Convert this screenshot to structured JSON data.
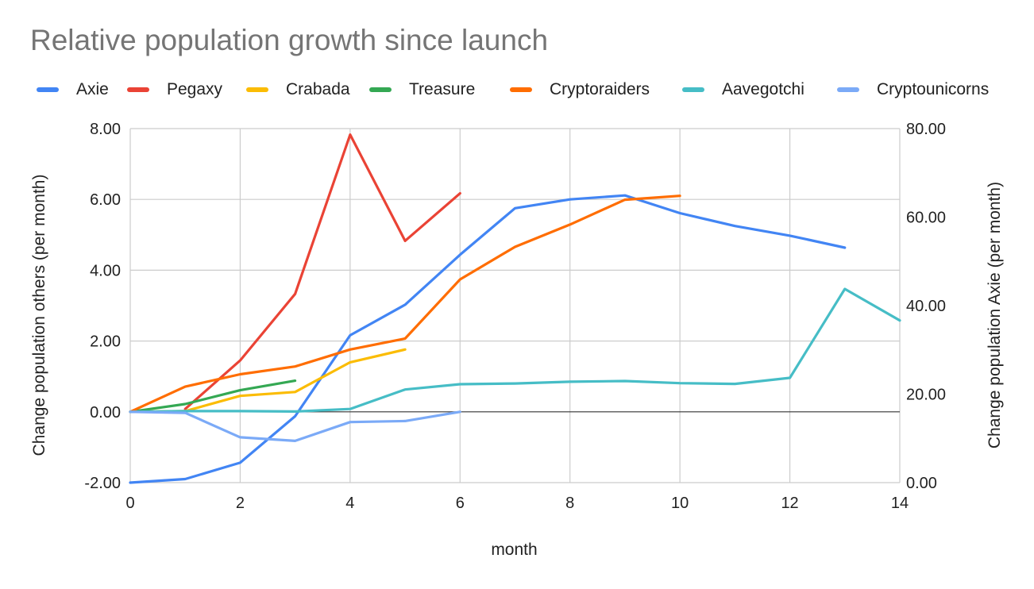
{
  "chart_data": {
    "type": "line",
    "title": "Relative population growth since launch",
    "xlabel": "month",
    "ylabel_left": "Change population others (per month)",
    "ylabel_right": "Change population Axie (per month)",
    "xlim": [
      0,
      14
    ],
    "xticks": [
      0,
      2,
      4,
      6,
      8,
      10,
      12,
      14
    ],
    "ylim_left": [
      -2,
      8
    ],
    "yticks_left": [
      "-2.00",
      "0.00",
      "2.00",
      "4.00",
      "6.00",
      "8.00"
    ],
    "ylim_right": [
      0,
      80
    ],
    "yticks_right": [
      "0.00",
      "20.00",
      "40.00",
      "60.00",
      "80.00"
    ],
    "grid": true,
    "legend_position": "top",
    "series": [
      {
        "name": "Axie",
        "axis": "right",
        "color": "#4285f4",
        "x": [
          0,
          1,
          2,
          3,
          4,
          5,
          6,
          7,
          8,
          9,
          10,
          11,
          12,
          13
        ],
        "y": [
          0.0,
          0.8,
          4.5,
          15.0,
          33.3,
          40.2,
          51.5,
          62.0,
          64.0,
          64.9,
          60.9,
          58.0,
          55.8,
          53.1
        ]
      },
      {
        "name": "Pegaxy",
        "axis": "left",
        "color": "#ea4335",
        "x": [
          1,
          2,
          3,
          4,
          5,
          6
        ],
        "y": [
          0.08,
          1.45,
          3.33,
          7.83,
          4.83,
          6.17
        ]
      },
      {
        "name": "Crabada",
        "axis": "left",
        "color": "#fbbc04",
        "x": [
          0,
          1,
          2,
          3,
          4,
          5
        ],
        "y": [
          0.0,
          0.02,
          0.45,
          0.56,
          1.4,
          1.76
        ]
      },
      {
        "name": "Treasure",
        "axis": "left",
        "color": "#34a853",
        "x": [
          0,
          1,
          2,
          3
        ],
        "y": [
          0.0,
          0.22,
          0.61,
          0.88
        ]
      },
      {
        "name": "Cryptoraiders",
        "axis": "left",
        "color": "#ff6d01",
        "x": [
          0,
          1,
          2,
          3,
          4,
          5,
          6,
          7,
          8,
          9,
          10
        ],
        "y": [
          0.0,
          0.71,
          1.06,
          1.28,
          1.76,
          2.07,
          3.74,
          4.66,
          5.29,
          5.99,
          6.1
        ]
      },
      {
        "name": "Aavegotchi",
        "axis": "left",
        "color": "#46bdc6",
        "x": [
          0,
          1,
          2,
          3,
          4,
          5,
          6,
          7,
          8,
          9,
          10,
          11,
          12,
          13,
          14
        ],
        "y": [
          0.0,
          0.02,
          0.02,
          0.01,
          0.08,
          0.63,
          0.78,
          0.8,
          0.85,
          0.87,
          0.81,
          0.79,
          0.96,
          3.47,
          2.58
        ]
      },
      {
        "name": "Cryptounicorns",
        "axis": "left",
        "color": "#7baaf7",
        "x": [
          0,
          1,
          2,
          3,
          4,
          5,
          6
        ],
        "y": [
          0.0,
          -0.03,
          -0.72,
          -0.82,
          -0.29,
          -0.26,
          0.0
        ]
      }
    ]
  }
}
